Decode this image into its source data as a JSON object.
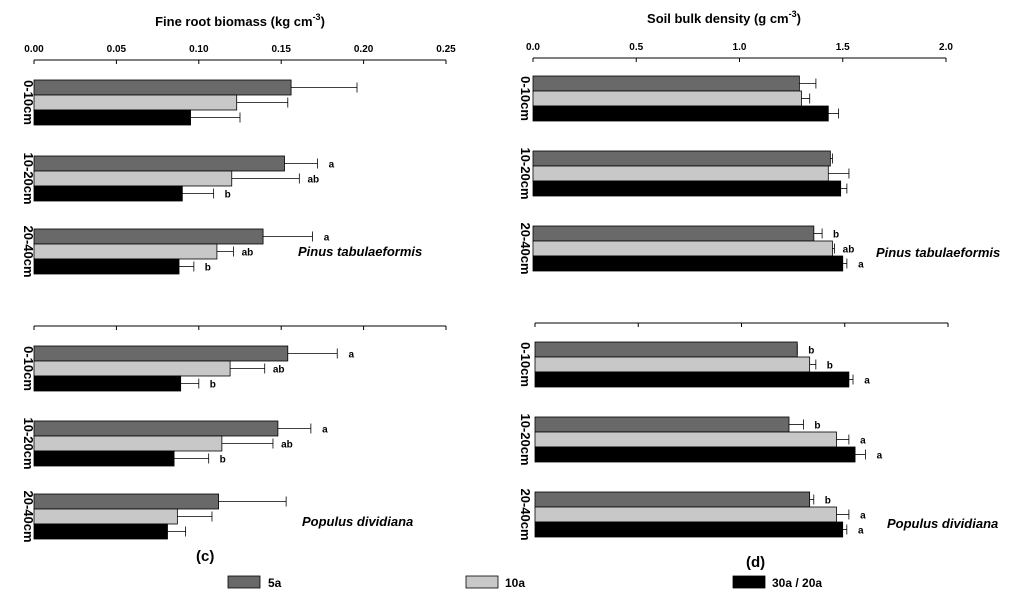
{
  "series": [
    {
      "key": "s5",
      "name": "5a",
      "color": "#696969"
    },
    {
      "key": "s10",
      "name": "10a",
      "color": "#c8c8c8"
    },
    {
      "key": "s30",
      "name": "30a / 20a",
      "color": "#000000"
    }
  ],
  "chart_data": [
    {
      "type": "bar",
      "orientation": "horizontal",
      "panel_label": "(c)",
      "xlabel": "Fine root biomass (kg cm",
      "xlabel_sup": "-3",
      "xlabel_end": ")",
      "xlim": [
        0,
        0.25
      ],
      "ticks": [
        "0.00",
        "0.05",
        "0.10",
        "0.15",
        "0.20",
        "0.25"
      ],
      "groups": [
        {
          "species": "Pinus tabulaeformis",
          "categories": [
            {
              "depth": "0-10cm",
              "values": [
                0.156,
                0.123,
                0.095
              ],
              "errors": [
                0.04,
                0.031,
                0.03
              ],
              "letters": [
                "",
                "",
                ""
              ]
            },
            {
              "depth": "10-20cm",
              "values": [
                0.152,
                0.12,
                0.09
              ],
              "errors": [
                0.02,
                0.041,
                0.019
              ],
              "letters": [
                "a",
                "ab",
                "b"
              ]
            },
            {
              "depth": "20-40cm",
              "values": [
                0.139,
                0.111,
                0.088
              ],
              "errors": [
                0.03,
                0.01,
                0.009
              ],
              "letters": [
                "a",
                "ab",
                "b"
              ]
            }
          ]
        },
        {
          "species": "Populus dividiana",
          "categories": [
            {
              "depth": "0-10cm",
              "values": [
                0.154,
                0.119,
                0.089
              ],
              "errors": [
                0.03,
                0.021,
                0.011
              ],
              "letters": [
                "a",
                "ab",
                "b"
              ]
            },
            {
              "depth": "10-20cm",
              "values": [
                0.148,
                0.114,
                0.085
              ],
              "errors": [
                0.02,
                0.031,
                0.021
              ],
              "letters": [
                "a",
                "ab",
                "b"
              ]
            },
            {
              "depth": "20-40cm",
              "values": [
                0.112,
                0.087,
                0.081
              ],
              "errors": [
                0.041,
                0.021,
                0.011
              ],
              "letters": [
                "",
                "",
                ""
              ]
            }
          ]
        }
      ]
    },
    {
      "type": "bar",
      "orientation": "horizontal",
      "panel_label": "(d)",
      "xlabel": "Soil bulk density (g cm",
      "xlabel_sup": "-3",
      "xlabel_end": ")",
      "xlim": [
        0,
        2.0
      ],
      "ticks": [
        "0.0",
        "0.5",
        "1.0",
        "1.5",
        "2.0"
      ],
      "groups": [
        {
          "species": "Pinus tabulaeformis",
          "categories": [
            {
              "depth": "0-10cm",
              "values": [
                1.29,
                1.3,
                1.43
              ],
              "errors": [
                0.08,
                0.04,
                0.05
              ],
              "letters": [
                "",
                "",
                ""
              ]
            },
            {
              "depth": "10-20cm",
              "values": [
                1.44,
                1.43,
                1.49
              ],
              "errors": [
                0.01,
                0.1,
                0.03
              ],
              "letters": [
                "",
                "",
                ""
              ]
            },
            {
              "depth": "20-40cm",
              "values": [
                1.36,
                1.45,
                1.5
              ],
              "errors": [
                0.04,
                0.01,
                0.02
              ],
              "letters": [
                "b",
                "ab",
                "a"
              ]
            }
          ]
        },
        {
          "species": "Populus dividiana",
          "categories": [
            {
              "depth": "0-10cm",
              "values": [
                1.27,
                1.33,
                1.52
              ],
              "errors": [
                0.0,
                0.03,
                0.02
              ],
              "letters": [
                "b",
                "b",
                "a"
              ]
            },
            {
              "depth": "10-20cm",
              "values": [
                1.23,
                1.46,
                1.55
              ],
              "errors": [
                0.07,
                0.06,
                0.05
              ],
              "letters": [
                "b",
                "a",
                "a"
              ]
            },
            {
              "depth": "20-40cm",
              "values": [
                1.33,
                1.46,
                1.49
              ],
              "errors": [
                0.02,
                0.06,
                0.02
              ],
              "letters": [
                "b",
                "a",
                "a"
              ]
            }
          ]
        }
      ]
    }
  ]
}
